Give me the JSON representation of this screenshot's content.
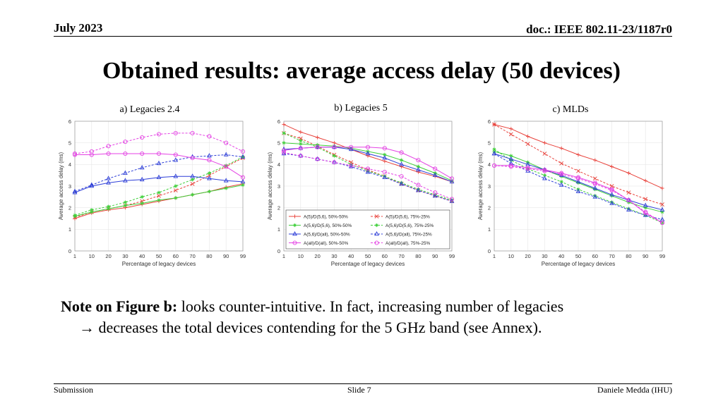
{
  "header": {
    "date": "July 2023",
    "doc": "doc.: IEEE 802.11-23/1187r0"
  },
  "title": "Obtained results: average access delay (50 devices)",
  "footer": {
    "left": "Submission",
    "center": "Slide 7",
    "right": "Daniele Medda (IHU)"
  },
  "note": {
    "bold": "Note on Figure b:",
    "line1": " looks counter-intuitive. In fact, increasing number of legacies",
    "line2": "→ decreases the total devices contending for the 5 GHz band (see Annex)."
  },
  "colors": {
    "red": "#e8413a",
    "green": "#3fcf3a",
    "blue": "#2e3fd8",
    "magenta": "#e442e4"
  },
  "chart_data": [
    {
      "type": "line",
      "label": "a) Legacies 2.4",
      "xlabel": "Percentage of legacy devices",
      "ylabel": "Average access delay (ms)",
      "x": [
        1,
        10,
        20,
        30,
        40,
        50,
        60,
        70,
        80,
        90,
        99
      ],
      "xticks": [
        "1",
        "10",
        "20",
        "30",
        "40",
        "50",
        "60",
        "70",
        "80",
        "90",
        "99"
      ],
      "ylim": [
        0,
        6
      ],
      "yticks": [
        "0",
        "1",
        "2",
        "3",
        "4",
        "5",
        "6"
      ],
      "series": [
        {
          "name": "A(5)/D(5,6), 50%-50%",
          "color": "#e8413a",
          "dash": false,
          "marker": "plus",
          "values": [
            1.5,
            1.75,
            1.9,
            2.0,
            2.15,
            2.3,
            2.45,
            2.6,
            2.75,
            2.95,
            3.1
          ]
        },
        {
          "name": "A(5)/D(5,6), 75%-25%",
          "color": "#e8413a",
          "dash": true,
          "marker": "x",
          "values": [
            1.55,
            1.8,
            1.95,
            2.1,
            2.3,
            2.55,
            2.8,
            3.1,
            3.5,
            3.9,
            4.3
          ]
        },
        {
          "name": "A(5,6)/D(5,6), 50%-50%",
          "color": "#3fcf3a",
          "dash": false,
          "marker": "star",
          "values": [
            1.6,
            1.8,
            1.95,
            2.1,
            2.2,
            2.35,
            2.45,
            2.6,
            2.75,
            2.9,
            3.05
          ]
        },
        {
          "name": "A(5,6)/D(5,6), 75%-25%",
          "color": "#3fcf3a",
          "dash": true,
          "marker": "star",
          "values": [
            1.65,
            1.9,
            2.05,
            2.25,
            2.5,
            2.7,
            3.0,
            3.3,
            3.6,
            3.95,
            4.35
          ]
        },
        {
          "name": "A(5,6)/D(all), 50%-50%",
          "color": "#2e3fd8",
          "dash": false,
          "marker": "tri",
          "values": [
            2.7,
            3.0,
            3.15,
            3.25,
            3.3,
            3.4,
            3.45,
            3.45,
            3.35,
            3.25,
            3.2
          ]
        },
        {
          "name": "A(5,6)/D(all), 75%-25%",
          "color": "#2e3fd8",
          "dash": true,
          "marker": "tri",
          "values": [
            2.75,
            3.05,
            3.35,
            3.6,
            3.85,
            4.05,
            4.2,
            4.35,
            4.4,
            4.45,
            4.35
          ]
        },
        {
          "name": "A(all)/D(all), 50%-50%",
          "color": "#e442e4",
          "dash": false,
          "marker": "circle",
          "values": [
            4.45,
            4.45,
            4.5,
            4.5,
            4.5,
            4.5,
            4.45,
            4.3,
            4.2,
            3.9,
            3.4
          ]
        },
        {
          "name": "A(all)/D(all), 75%-25%",
          "color": "#e442e4",
          "dash": true,
          "marker": "circle",
          "values": [
            4.5,
            4.6,
            4.85,
            5.05,
            5.25,
            5.4,
            5.45,
            5.45,
            5.3,
            5.0,
            4.6
          ]
        }
      ]
    },
    {
      "type": "line",
      "label": "b) Legacies 5",
      "xlabel": "Percentage of legacy devices",
      "ylabel": "Average access delay (ms)",
      "x": [
        1,
        10,
        20,
        30,
        40,
        50,
        60,
        70,
        80,
        90,
        99
      ],
      "xticks": [
        "1",
        "10",
        "20",
        "30",
        "40",
        "50",
        "60",
        "70",
        "80",
        "90",
        "99"
      ],
      "ylim": [
        0,
        6
      ],
      "yticks": [
        "0",
        "1",
        "2",
        "3",
        "4",
        "5",
        "6"
      ],
      "legend": "lower-left",
      "series": [
        {
          "name": "A(5)/D(5,6), 50%-50%",
          "color": "#e8413a",
          "dash": false,
          "marker": "plus",
          "values": [
            5.85,
            5.5,
            5.25,
            5.0,
            4.7,
            4.4,
            4.15,
            3.9,
            3.65,
            3.45,
            3.2
          ]
        },
        {
          "name": "A(5)/D(5,6), 75%-25%",
          "color": "#e8413a",
          "dash": true,
          "marker": "x",
          "values": [
            5.45,
            5.2,
            4.85,
            4.45,
            4.1,
            3.75,
            3.45,
            3.1,
            2.8,
            2.55,
            2.3
          ]
        },
        {
          "name": "A(5,6)/D(5,6), 50%-50%",
          "color": "#3fcf3a",
          "dash": false,
          "marker": "star",
          "values": [
            5.0,
            4.95,
            4.9,
            4.85,
            4.75,
            4.6,
            4.45,
            4.2,
            3.9,
            3.6,
            3.25
          ]
        },
        {
          "name": "A(5,6)/D(5,6), 75%-25%",
          "color": "#3fcf3a",
          "dash": true,
          "marker": "star",
          "values": [
            5.45,
            5.1,
            4.8,
            4.4,
            4.0,
            3.7,
            3.45,
            3.15,
            2.85,
            2.6,
            2.35
          ]
        },
        {
          "name": "A(5,6)/D(all), 50%-50%",
          "color": "#2e3fd8",
          "dash": false,
          "marker": "tri",
          "values": [
            4.7,
            4.75,
            4.8,
            4.8,
            4.7,
            4.5,
            4.3,
            4.0,
            3.75,
            3.5,
            3.2
          ]
        },
        {
          "name": "A(5,6)/D(all), 75%-25%",
          "color": "#2e3fd8",
          "dash": true,
          "marker": "tri",
          "values": [
            4.5,
            4.4,
            4.25,
            4.1,
            3.9,
            3.65,
            3.4,
            3.1,
            2.8,
            2.55,
            2.3
          ]
        },
        {
          "name": "A(all)/D(all), 50%-50%",
          "color": "#e442e4",
          "dash": false,
          "marker": "circle",
          "values": [
            4.65,
            4.75,
            4.8,
            4.8,
            4.8,
            4.8,
            4.75,
            4.55,
            4.2,
            3.8,
            3.35
          ]
        },
        {
          "name": "A(all)/D(all), 75%-25%",
          "color": "#e442e4",
          "dash": true,
          "marker": "circle",
          "values": [
            4.55,
            4.4,
            4.25,
            4.1,
            3.95,
            3.8,
            3.65,
            3.45,
            3.05,
            2.7,
            2.4
          ]
        }
      ]
    },
    {
      "type": "line",
      "label": "c) MLDs",
      "xlabel": "Percentage of legacy devices",
      "ylabel": "Average access delay (ms)",
      "x": [
        1,
        10,
        20,
        30,
        40,
        50,
        60,
        70,
        80,
        90,
        99
      ],
      "xticks": [
        "1",
        "10",
        "20",
        "30",
        "40",
        "50",
        "60",
        "70",
        "80",
        "90",
        "99"
      ],
      "ylim": [
        0,
        6
      ],
      "yticks": [
        "0",
        "1",
        "2",
        "3",
        "4",
        "5",
        "6"
      ],
      "series": [
        {
          "name": "A(5)/D(5,6), 50%-50%",
          "color": "#e8413a",
          "dash": false,
          "marker": "plus",
          "values": [
            5.85,
            5.65,
            5.3,
            5.0,
            4.75,
            4.45,
            4.2,
            3.9,
            3.6,
            3.25,
            2.9
          ]
        },
        {
          "name": "A(5)/D(5,6), 75%-25%",
          "color": "#e8413a",
          "dash": true,
          "marker": "x",
          "values": [
            5.85,
            5.4,
            4.95,
            4.5,
            4.05,
            3.7,
            3.35,
            3.0,
            2.7,
            2.4,
            2.15
          ]
        },
        {
          "name": "A(5,6)/D(5,6), 50%-50%",
          "color": "#3fcf3a",
          "dash": false,
          "marker": "star",
          "values": [
            4.6,
            4.4,
            4.1,
            3.75,
            3.45,
            3.15,
            2.85,
            2.55,
            2.25,
            2.0,
            1.8
          ]
        },
        {
          "name": "A(5,6)/D(5,6), 75%-25%",
          "color": "#3fcf3a",
          "dash": true,
          "marker": "star",
          "values": [
            4.7,
            4.2,
            3.8,
            3.5,
            3.2,
            2.85,
            2.55,
            2.25,
            1.95,
            1.65,
            1.3
          ]
        },
        {
          "name": "A(5,6)/D(all), 50%-50%",
          "color": "#2e3fd8",
          "dash": false,
          "marker": "tri",
          "values": [
            4.5,
            4.25,
            4.0,
            3.75,
            3.5,
            3.2,
            2.9,
            2.6,
            2.35,
            2.1,
            1.9
          ]
        },
        {
          "name": "A(5,6)/D(all), 75%-25%",
          "color": "#2e3fd8",
          "dash": true,
          "marker": "tri",
          "values": [
            4.5,
            4.05,
            3.7,
            3.35,
            3.05,
            2.75,
            2.5,
            2.2,
            1.9,
            1.65,
            1.45
          ]
        },
        {
          "name": "A(all)/D(all), 50%-50%",
          "color": "#e442e4",
          "dash": false,
          "marker": "circle",
          "values": [
            3.95,
            3.95,
            3.85,
            3.75,
            3.6,
            3.4,
            3.15,
            2.85,
            2.35,
            1.75,
            1.3
          ]
        },
        {
          "name": "A(all)/D(all), 75%-25%",
          "color": "#e442e4",
          "dash": true,
          "marker": "circle",
          "values": [
            3.95,
            3.9,
            3.8,
            3.7,
            3.55,
            3.35,
            3.1,
            2.8,
            2.35,
            1.8,
            1.3
          ]
        }
      ]
    }
  ]
}
